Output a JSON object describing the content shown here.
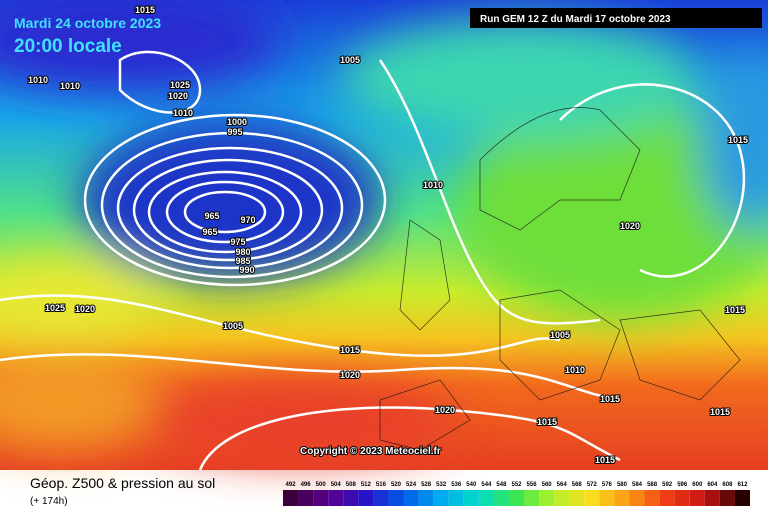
{
  "header": {
    "date": "Mardi 24 octobre 2023",
    "time": "20:00 locale",
    "run": "Run GEM 12 Z du Mardi 17 octobre 2023"
  },
  "copyright": "Copyright © 2023 Meteociel.fr",
  "footer": {
    "title": "Géop. Z500 & pression au sol",
    "lead": "(+ 174h)"
  },
  "colorbar": {
    "labels": [
      "492",
      "496",
      "500",
      "504",
      "508",
      "512",
      "516",
      "520",
      "524",
      "528",
      "532",
      "536",
      "540",
      "544",
      "548",
      "552",
      "556",
      "560",
      "564",
      "568",
      "572",
      "576",
      "580",
      "584",
      "588",
      "592",
      "596",
      "600",
      "604",
      "608",
      "612"
    ]
  },
  "isobars": {
    "labels": [
      "1015",
      "1005",
      "1010",
      "1010",
      "1025",
      "1020",
      "1010",
      "1000",
      "995",
      "1010",
      "965",
      "965",
      "970",
      "975",
      "980",
      "985",
      "990",
      "1020",
      "1015",
      "1025",
      "1020",
      "1005",
      "1015",
      "1020",
      "1005",
      "1010",
      "1015",
      "1015",
      "1020",
      "1015",
      "1015",
      "1015"
    ]
  }
}
